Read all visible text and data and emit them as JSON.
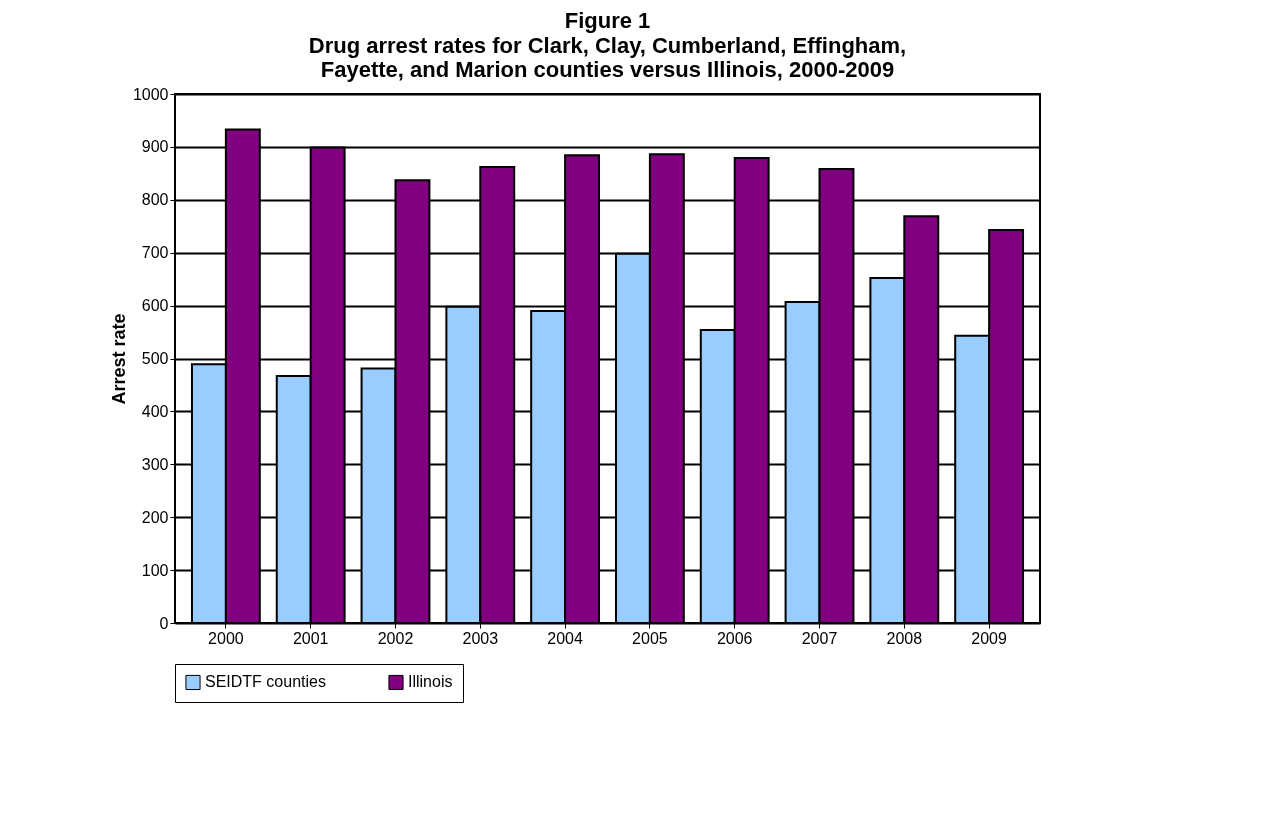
{
  "chart_data": {
    "type": "bar",
    "title": "Figure 1",
    "subtitle": "Drug arrest rates for Clark, Clay, Cumberland, Effingham, Fayette, and Marion counties versus Illinois, 2000-2009",
    "ylabel": "Arrest rate",
    "categories": [
      "2000",
      "2001",
      "2002",
      "2003",
      "2004",
      "2005",
      "2006",
      "2007",
      "2008",
      "2009"
    ],
    "series": [
      {
        "name": "SEIDTF counties",
        "color": "#99ccff",
        "values": [
          489,
          467,
          481,
          598,
          590,
          698,
          554,
          607,
          652,
          543
        ]
      },
      {
        "name": "Illinois",
        "color": "#800080",
        "values": [
          933,
          899,
          837,
          862,
          884,
          886,
          879,
          858,
          769,
          743
        ]
      }
    ],
    "ylim": [
      0,
      1000
    ],
    "yticks": [
      0,
      100,
      200,
      300,
      400,
      500,
      600,
      700,
      800,
      900,
      1000
    ],
    "grid": "y",
    "legend": "bottom"
  }
}
